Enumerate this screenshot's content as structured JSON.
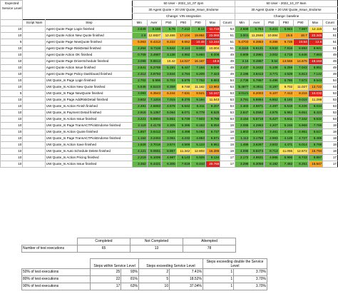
{
  "header": {
    "expected_label": "Expected Service Level",
    "run1_title": "50 User - 2022_10_07 2pm",
    "run1_subtitle": "30 Agent Quote + 20 UW Quote_Issue_Endorse",
    "run1_change": "Change: VIN integration",
    "run2_title": "50 User - 2022_10_07 9am",
    "run2_subtitle": "30 Agent Quote + 20 UW Quote_Issue_Endorse",
    "run2_change": "Change: baseline"
  },
  "columns": [
    "Script Nam",
    "Step",
    "Min",
    "Aver",
    "P50",
    "P80",
    "P90",
    "Max",
    "Count"
  ],
  "rows": [
    {
      "sla": "10",
      "script": "",
      "step": "Agent Quote Page Login finished",
      "a": [
        "2.649",
        "6.165",
        "5.76",
        "7.212",
        "8.12",
        "11.718",
        "53"
      ],
      "ac": [
        "g",
        "g",
        "g",
        "g",
        "g",
        "r",
        ""
      ],
      "b": [
        "2.668",
        "5.784",
        "5.421",
        "6.943",
        "7.887",
        "12.115",
        "53"
      ],
      "bc": [
        "g",
        "g",
        "g",
        "g",
        "g",
        "y",
        ""
      ]
    },
    {
      "sla": "10",
      "script": "",
      "step": "Agent Quote Action New Quote finished",
      "a": [
        "2.8",
        "12.6827",
        "12.466",
        "17.104",
        "19.864",
        "23.066",
        "51"
      ],
      "ac": [
        "g",
        "y",
        "y",
        "o",
        "o",
        "r",
        ""
      ],
      "b": [
        "3.001",
        "11.2846",
        "10.884",
        "15.6",
        "18.7",
        "22.345",
        "51"
      ],
      "bc": [
        "g",
        "y",
        "y",
        "o",
        "o",
        "r",
        ""
      ]
    },
    {
      "sla": "5",
      "script": "",
      "step": "Agent Quote Page NewQuote finished",
      "a": [
        "5.063",
        "8.4313",
        "8.222",
        "9.652",
        "10.48",
        "13.244",
        "51"
      ],
      "ac": [
        "o",
        "o",
        "o",
        "o",
        "r",
        "r",
        ""
      ],
      "b": [
        "5.4703",
        "8.3853",
        "8.386",
        "9.728",
        "10.54",
        "12.8",
        "51"
      ],
      "bc": [
        "o",
        "o",
        "o",
        "o",
        "r",
        "r",
        ""
      ]
    },
    {
      "sla": "10",
      "script": "",
      "step": "Agent Quote Page RiskDetail finished",
      "a": [
        "4.264",
        "6.7118",
        "6.642",
        "8.113",
        "8.802",
        "10.004",
        "51"
      ],
      "ac": [
        "g",
        "g",
        "g",
        "g",
        "g",
        "y",
        ""
      ],
      "b": [
        "4.1115",
        "6.6131",
        "6.532",
        "7.918",
        "8.693",
        "9.941",
        "51"
      ],
      "bc": [
        "g",
        "g",
        "g",
        "g",
        "g",
        "g",
        ""
      ]
    },
    {
      "sla": "10",
      "script": "",
      "step": "Agent Quote Action OK finished",
      "a": [
        "0.709",
        "3.4987",
        "3.138",
        "4.982",
        "5.893",
        "8.008",
        "49"
      ],
      "ac": [
        "g",
        "g",
        "g",
        "g",
        "g",
        "g",
        ""
      ],
      "b": [
        "0.609",
        "3.3981",
        "3.002",
        "4.718",
        "5.646",
        "7.883",
        "49"
      ],
      "bc": [
        "g",
        "g",
        "g",
        "g",
        "g",
        "g",
        ""
      ]
    },
    {
      "sla": "10",
      "script": "",
      "step": "Agent Quote Page DriverSchedule finished",
      "a": [
        "3.099",
        "9.8813",
        "10.42",
        "14.027",
        "16.167",
        "18.6",
        "49"
      ],
      "ac": [
        "g",
        "g",
        "y",
        "o",
        "o",
        "r",
        ""
      ],
      "b": [
        "3.16",
        "9.4987",
        "9.64",
        "13.558",
        "14.678",
        "18.164",
        "49"
      ],
      "bc": [
        "g",
        "g",
        "g",
        "o",
        "o",
        "r",
        ""
      ]
    },
    {
      "sla": "10",
      "script": "",
      "step": "Agent Quote Action Issue finished",
      "a": [
        "2.541",
        "5.2769",
        "5.191",
        "6.447",
        "7.184",
        "9.006",
        "49"
      ],
      "ac": [
        "g",
        "g",
        "g",
        "g",
        "g",
        "g",
        ""
      ],
      "b": [
        "2.437",
        "5.1632",
        "5.108",
        "6.259",
        "7.043",
        "8.851",
        "49"
      ],
      "bc": [
        "g",
        "g",
        "g",
        "g",
        "g",
        "g",
        ""
      ]
    },
    {
      "sla": "10",
      "script": "",
      "step": "Agent Quote Page Policy Dashboard finished",
      "a": [
        "2.312",
        "3.9793",
        "3.844",
        "4.784",
        "6.209",
        "7.423",
        "49"
      ],
      "ac": [
        "g",
        "g",
        "g",
        "g",
        "g",
        "g",
        ""
      ],
      "b": [
        "2.196",
        "3.8413",
        "3.771",
        "4.529",
        "5.813",
        "7.142",
        "49"
      ],
      "bc": [
        "g",
        "g",
        "g",
        "g",
        "g",
        "g",
        ""
      ]
    },
    {
      "sla": "10",
      "script": "",
      "step": "UW Quote_Is Page Login finished",
      "a": [
        "2.702",
        "5.996",
        "5.703",
        "6.979",
        "7.752",
        "9.863",
        "54"
      ],
      "ac": [
        "g",
        "g",
        "g",
        "g",
        "g",
        "g",
        ""
      ],
      "b": [
        "2.738",
        "5.7887",
        "5.496",
        "6.786",
        "7.572",
        "9.543",
        "54"
      ],
      "bc": [
        "g",
        "g",
        "g",
        "g",
        "g",
        "g",
        ""
      ]
    },
    {
      "sla": "10",
      "script": "",
      "step": "UW Quote_Is Action New Quote finished",
      "a": [
        "5.645",
        "8.5223",
        "8.359",
        "9.748",
        "11.182",
        "13.963",
        "53"
      ],
      "ac": [
        "g",
        "g",
        "g",
        "y",
        "y",
        "o",
        ""
      ],
      "b": [
        "5.4877",
        "8.3911",
        "8.197",
        "9.702",
        "11.027",
        "13.722",
        "53"
      ],
      "bc": [
        "g",
        "g",
        "g",
        "y",
        "y",
        "o",
        ""
      ]
    },
    {
      "sla": "5",
      "script": "",
      "step": "UW Quote_Is Page NewQuote finished",
      "a": [
        "3.083",
        "6.3543",
        "6.244",
        "7.631",
        "8.521",
        "10.247",
        "53"
      ],
      "ac": [
        "g",
        "o",
        "o",
        "o",
        "o",
        "r",
        ""
      ],
      "b": [
        "3.0121",
        "6.2003",
        "6.107",
        "7.413",
        "8.216",
        "10.032",
        "53"
      ],
      "bc": [
        "g",
        "o",
        "o",
        "o",
        "o",
        "r",
        ""
      ]
    },
    {
      "sla": "10",
      "script": "",
      "step": "UW Quote_Is Page AddRiskDetail finished",
      "a": [
        "3.802",
        "7.1204",
        "7.015",
        "8.376",
        "9.184",
        "11.543",
        "53"
      ],
      "ac": [
        "g",
        "g",
        "g",
        "g",
        "g",
        "y",
        ""
      ],
      "b": [
        "3.791",
        "6.9894",
        "6.852",
        "8.192",
        "9.018",
        "11.288",
        "53"
      ],
      "bc": [
        "g",
        "g",
        "g",
        "g",
        "g",
        "y",
        ""
      ]
    },
    {
      "sla": "10",
      "script": "",
      "step": "UW Quote_Is Action Finish finished",
      "a": [
        "2.491",
        "4.6683",
        "4.578",
        "5.642",
        "6.311",
        "8.207",
        "53"
      ],
      "ac": [
        "g",
        "g",
        "g",
        "g",
        "g",
        "g",
        ""
      ],
      "b": [
        "2.403",
        "4.5871",
        "4.497",
        "5.518",
        "6.226",
        "8.034",
        "53"
      ],
      "bc": [
        "g",
        "g",
        "g",
        "g",
        "g",
        "g",
        ""
      ]
    },
    {
      "sla": "10",
      "script": "",
      "step": "UW Quote_Is Payment Detail finished",
      "a": [
        "2.916",
        "5.1357",
        "5.064",
        "6.071",
        "6.778",
        "8.625",
        "53"
      ],
      "ac": [
        "g",
        "g",
        "g",
        "g",
        "g",
        "g",
        ""
      ],
      "b": [
        "2.847",
        "5.0592",
        "4.975",
        "5.962",
        "6.651",
        "8.423",
        "53"
      ],
      "bc": [
        "g",
        "g",
        "g",
        "g",
        "g",
        "g",
        ""
      ]
    },
    {
      "sla": "10",
      "script": "",
      "step": "UW Quote_Is Action Issue finished",
      "a": [
        "3.221",
        "5.6904",
        "5.551",
        "6.749",
        "7.503",
        "9.786",
        "53"
      ],
      "ac": [
        "g",
        "g",
        "g",
        "g",
        "g",
        "g",
        ""
      ],
      "b": [
        "3.154",
        "5.5718",
        "5.427",
        "6.611",
        "7.342",
        "9.532",
        "53"
      ],
      "bc": [
        "g",
        "g",
        "g",
        "g",
        "g",
        "g",
        ""
      ]
    },
    {
      "sla": "10",
      "script": "",
      "step": "UW Quote_Is Page TransACTPickEndorse finished",
      "a": [
        "2.119",
        "4.4178",
        "4.305",
        "5.395",
        "6.163",
        "8.094",
        "18"
      ],
      "ac": [
        "g",
        "g",
        "g",
        "g",
        "g",
        "g",
        ""
      ],
      "b": [
        "2.085",
        "4.2963",
        "4.207",
        "5.246",
        "5.969",
        "7.786",
        "18"
      ],
      "bc": [
        "g",
        "g",
        "g",
        "g",
        "g",
        "g",
        ""
      ]
    },
    {
      "sla": "10",
      "script": "",
      "step": "UW Quote_Is Action Quote finished",
      "a": [
        "1.857",
        "3.6412",
        "3.529",
        "4.498",
        "5.062",
        "6.737",
        "18"
      ],
      "ac": [
        "g",
        "g",
        "g",
        "g",
        "g",
        "g",
        ""
      ],
      "b": [
        "1.803",
        "3.5727",
        "3.461",
        "4.402",
        "4.951",
        "6.517",
        "18"
      ],
      "bc": [
        "g",
        "g",
        "g",
        "g",
        "g",
        "g",
        ""
      ]
    },
    {
      "sla": "10",
      "script": "",
      "step": "UW Quote_Is Page TransACTPickEndorse finished",
      "a": [
        "1.152",
        "3.2404",
        "3.061",
        "4.232",
        "4.853",
        "6.671",
        "18"
      ],
      "ac": [
        "g",
        "g",
        "g",
        "g",
        "g",
        "g",
        ""
      ],
      "b": [
        "1.113",
        "3.1758",
        "2.993",
        "4.128",
        "4.727",
        "6.485",
        "18"
      ],
      "bc": [
        "g",
        "g",
        "g",
        "g",
        "g",
        "g",
        ""
      ]
    },
    {
      "sla": "10",
      "script": "",
      "step": "UW Quote_Is Action Save finished",
      "a": [
        "1.529",
        "3.7016",
        "3.574",
        "4.569",
        "5.123",
        "6.961",
        "18"
      ],
      "ac": [
        "g",
        "g",
        "g",
        "g",
        "g",
        "g",
        ""
      ],
      "b": [
        "1.486",
        "3.6287",
        "3.502",
        "4.471",
        "5.014",
        "6.788",
        "18"
      ],
      "bc": [
        "g",
        "g",
        "g",
        "g",
        "g",
        "g",
        ""
      ]
    },
    {
      "sla": "10",
      "script": "",
      "step": "UW Quote_Is Auto Schedule Delete finished",
      "a": [
        "4.121",
        "9.0651",
        "8.957",
        "11.342",
        "12.803",
        "16.286",
        "18"
      ],
      "ac": [
        "g",
        "g",
        "g",
        "y",
        "y",
        "o",
        ""
      ],
      "b": [
        "4.095",
        "8.8374",
        "8.713",
        "11.055",
        "12.572",
        "15.794",
        "18"
      ],
      "bc": [
        "g",
        "g",
        "g",
        "y",
        "y",
        "o",
        ""
      ]
    },
    {
      "sla": "10",
      "script": "",
      "step": "UW Quote_Is Action Pricing finished",
      "a": [
        "2.219",
        "5.1006",
        "4.987",
        "6.143",
        "6.925",
        "9.134",
        "17"
      ],
      "ac": [
        "g",
        "g",
        "g",
        "g",
        "g",
        "g",
        ""
      ],
      "b": [
        "2.172",
        "4.9831",
        "4.865",
        "5.996",
        "6.743",
        "8.867",
        "17"
      ],
      "bc": [
        "g",
        "g",
        "g",
        "g",
        "g",
        "g",
        ""
      ]
    },
    {
      "sla": "10",
      "script": "",
      "step": "UW Quote_Is Action Issue finished",
      "a": [
        "3.352",
        "6.4421",
        "6.305",
        "7.619",
        "8.443",
        "20.766",
        "17"
      ],
      "ac": [
        "g",
        "g",
        "g",
        "g",
        "g",
        "r",
        ""
      ],
      "b": [
        "3.298",
        "6.3058",
        "6.182",
        "7.462",
        "8.251",
        "15.847",
        "17"
      ],
      "bc": [
        "g",
        "g",
        "g",
        "g",
        "g",
        "o",
        ""
      ]
    }
  ],
  "summary1": {
    "headers": [
      "Completed",
      "Not Completed",
      "Attempted"
    ],
    "label": "Number of test executions",
    "values": [
      "65",
      "13",
      "78"
    ]
  },
  "summary2": {
    "headers": [
      "Steps within Service Level",
      "Steps exceeding Service Level",
      "Steps exceeding double the Service Level"
    ],
    "rows": [
      {
        "label": "50% of test executions",
        "v": [
          "25",
          "93%",
          "2",
          "7.41%",
          "1",
          "3.70%"
        ]
      },
      {
        "label": "80% of test executions",
        "v": [
          "22",
          "81%",
          "5",
          "18.52%",
          "1",
          "3.70%"
        ]
      },
      {
        "label": "90% of test executions",
        "v": [
          "17",
          "63%",
          "10",
          "37.04%",
          "1",
          "3.70%"
        ]
      }
    ]
  }
}
